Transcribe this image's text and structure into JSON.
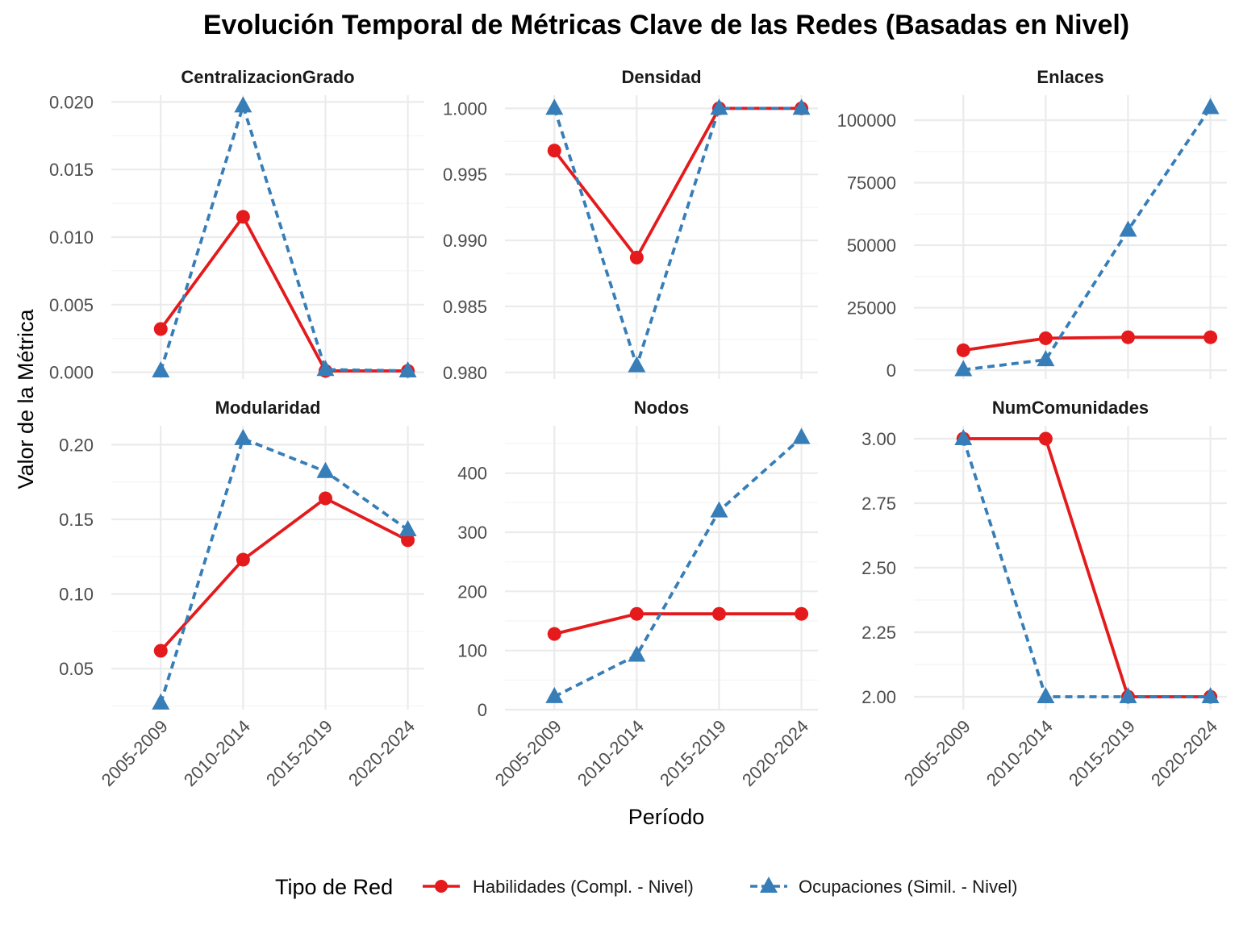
{
  "title": "Evolución Temporal de Métricas Clave de las Redes (Basadas en Nivel)",
  "xlabel": "Período",
  "ylabel": "Valor de la Métrica",
  "legend": {
    "title": "Tipo de Red",
    "placement": "bottom",
    "items": [
      {
        "label": "Habilidades (Compl. - Nivel)",
        "color": "#e41a1c",
        "shape": "circle",
        "line": "solid"
      },
      {
        "label": "Ocupaciones (Simil. - Nivel)",
        "color": "#377eb8",
        "shape": "triangle",
        "line": "dashed"
      }
    ]
  },
  "chart_data": {
    "type": "line",
    "categories": [
      "2005-2009",
      "2010-2014",
      "2015-2019",
      "2020-2024"
    ],
    "series_names": [
      "Habilidades (Compl. - Nivel)",
      "Ocupaciones (Simil. - Nivel)"
    ],
    "grid": true,
    "panels": [
      {
        "name": "CentralizacionGrado",
        "ylim": [
          -0.0005,
          0.0205
        ],
        "yticks": [
          0,
          0.005,
          0.01,
          0.015,
          0.02
        ],
        "ytick_labels": [
          "0.000",
          "0.005",
          "0.010",
          "0.015",
          "0.020"
        ],
        "series": [
          {
            "name": "Habilidades (Compl. - Nivel)",
            "values": [
              0.0032,
              0.0115,
              0.0001,
              0.0001
            ]
          },
          {
            "name": "Ocupaciones (Simil. - Nivel)",
            "values": [
              0.0001,
              0.0197,
              0.0002,
              0.0001
            ]
          }
        ]
      },
      {
        "name": "Densidad",
        "ylim": [
          0.9795,
          1.001
        ],
        "yticks": [
          0.98,
          0.985,
          0.99,
          0.995,
          1.0
        ],
        "ytick_labels": [
          "0.980",
          "0.985",
          "0.990",
          "0.995",
          "1.000"
        ],
        "series": [
          {
            "name": "Habilidades (Compl. - Nivel)",
            "values": [
              0.9968,
              0.9887,
              1.0,
              1.0
            ]
          },
          {
            "name": "Ocupaciones (Simil. - Nivel)",
            "values": [
              1.0,
              0.9805,
              1.0,
              1.0
            ]
          }
        ]
      },
      {
        "name": "Enlaces",
        "ylim": [
          -3500,
          110000
        ],
        "yticks": [
          0,
          25000,
          50000,
          75000,
          100000
        ],
        "ytick_labels": [
          "0",
          "25000",
          "50000",
          "75000",
          "100000"
        ],
        "series": [
          {
            "name": "Habilidades (Compl. - Nivel)",
            "values": [
              8000,
              12800,
              13200,
              13200
            ]
          },
          {
            "name": "Ocupaciones (Simil. - Nivel)",
            "values": [
              200,
              4200,
              56000,
              105000
            ]
          }
        ]
      },
      {
        "name": "Modularidad",
        "ylim": [
          0.0226,
          0.2126
        ],
        "yticks": [
          0.05,
          0.1,
          0.15,
          0.2
        ],
        "ytick_labels": [
          "0.05",
          "0.10",
          "0.15",
          "0.20"
        ],
        "series": [
          {
            "name": "Habilidades (Compl. - Nivel)",
            "values": [
              0.062,
              0.123,
              0.164,
              0.136
            ]
          },
          {
            "name": "Ocupaciones (Simil. - Nivel)",
            "values": [
              0.027,
              0.204,
              0.182,
              0.143
            ]
          }
        ]
      },
      {
        "name": "Nodos",
        "ylim": [
          0,
          480
        ],
        "yticks": [
          0,
          100,
          200,
          300,
          400
        ],
        "ytick_labels": [
          "0",
          "100",
          "200",
          "300",
          "400"
        ],
        "series": [
          {
            "name": "Habilidades (Compl. - Nivel)",
            "values": [
              128,
              162,
              162,
              162
            ]
          },
          {
            "name": "Ocupaciones (Simil. - Nivel)",
            "values": [
              22,
              92,
              336,
              460
            ]
          }
        ]
      },
      {
        "name": "NumComunidades",
        "ylim": [
          1.95,
          3.05
        ],
        "yticks": [
          2.0,
          2.25,
          2.5,
          2.75,
          3.0
        ],
        "ytick_labels": [
          "2.00",
          "2.25",
          "2.50",
          "2.75",
          "3.00"
        ],
        "series": [
          {
            "name": "Habilidades (Compl. - Nivel)",
            "values": [
              3,
              3,
              2,
              2
            ]
          },
          {
            "name": "Ocupaciones (Simil. - Nivel)",
            "values": [
              3,
              2,
              2,
              2
            ]
          }
        ]
      }
    ]
  }
}
